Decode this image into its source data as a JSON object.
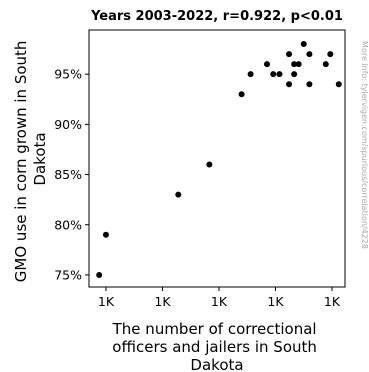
{
  "chart_data": {
    "type": "scatter",
    "title": "Years 2003-2022, r=0.922, p<0.01",
    "xlabel_lines": [
      "The number of correctional",
      "officers and jailers in South",
      "Dakota"
    ],
    "ylabel_lines": [
      "GMO use in corn grown in South",
      "Dakota"
    ],
    "watermark": "More info: tylervigen.com/spurious/correlation/4228",
    "y_ticks": [
      {
        "value": 75,
        "label": "75%"
      },
      {
        "value": 80,
        "label": "80%"
      },
      {
        "value": 85,
        "label": "85%"
      },
      {
        "value": 90,
        "label": "90%"
      },
      {
        "value": 95,
        "label": "95%"
      }
    ],
    "x_ticks": [
      {
        "value": 1,
        "label": "1K"
      },
      {
        "value": 2,
        "label": "1K"
      },
      {
        "value": 3,
        "label": "1K"
      },
      {
        "value": 4,
        "label": "1K"
      },
      {
        "value": 5,
        "label": "1K"
      }
    ],
    "xlim": [
      0.7,
      5.23
    ],
    "ylim": [
      73.8,
      99.4
    ],
    "points": [
      {
        "x": 0.88,
        "y": 75
      },
      {
        "x": 1.0,
        "y": 79
      },
      {
        "x": 2.28,
        "y": 83
      },
      {
        "x": 2.83,
        "y": 86
      },
      {
        "x": 3.4,
        "y": 93
      },
      {
        "x": 3.56,
        "y": 95
      },
      {
        "x": 3.85,
        "y": 96
      },
      {
        "x": 3.96,
        "y": 95
      },
      {
        "x": 4.07,
        "y": 95
      },
      {
        "x": 4.24,
        "y": 97
      },
      {
        "x": 4.24,
        "y": 94
      },
      {
        "x": 4.33,
        "y": 95
      },
      {
        "x": 4.33,
        "y": 96
      },
      {
        "x": 4.41,
        "y": 96
      },
      {
        "x": 4.5,
        "y": 98
      },
      {
        "x": 4.6,
        "y": 97
      },
      {
        "x": 4.6,
        "y": 94
      },
      {
        "x": 4.89,
        "y": 96
      },
      {
        "x": 4.97,
        "y": 97
      },
      {
        "x": 5.12,
        "y": 94
      }
    ]
  }
}
